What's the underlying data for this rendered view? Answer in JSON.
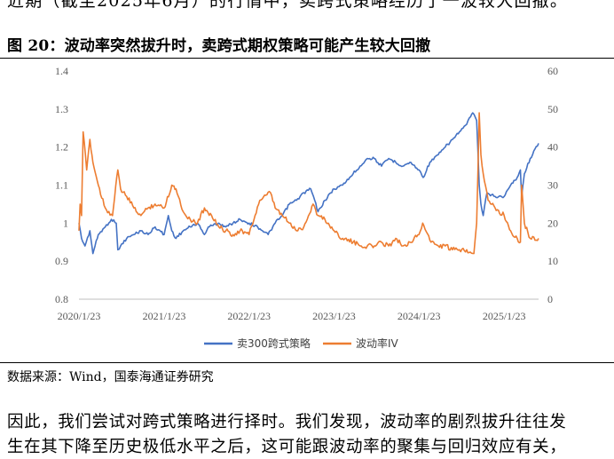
{
  "header_text": "近期（截至2025年6月）的行情中，卖跨式策略经历了一波较大回撤。",
  "figure_title": "图 20：波动率突然拔升时，卖跨式期权策略可能产生较大回撤",
  "source_note": "数据来源：Wind，国泰海通证券研究",
  "body_lines": [
    "因此，我们尝试对跨式策略进行择时。我们发现，波动率的剧烈拔升往往发",
    "生在其下降至历史极低水平之后，这可能跟波动率的聚集与回归效应有关，"
  ],
  "chart_data": {
    "type": "line",
    "title": "",
    "x_tick_labels": [
      "2020/1/23",
      "2021/1/23",
      "2022/1/23",
      "2023/1/23",
      "2024/1/23",
      "2025/1/23"
    ],
    "x_tick_dates": [
      "2020-01-23",
      "2021-01-23",
      "2022-01-23",
      "2023-01-23",
      "2024-01-23",
      "2025-01-23"
    ],
    "x_range": [
      "2020-01-23",
      "2025-06-20"
    ],
    "y_left": {
      "ticks": [
        "0.8",
        "0.9",
        "1",
        "1.1",
        "1.2",
        "1.3",
        "1.4"
      ],
      "range": [
        0.8,
        1.4
      ]
    },
    "y_right": {
      "ticks": [
        "0",
        "10",
        "20",
        "30",
        "40",
        "50",
        "60"
      ],
      "range": [
        0,
        60
      ]
    },
    "grid": false,
    "legend_position": "bottom",
    "series": [
      {
        "name": "卖300跨式策略",
        "axis": "left",
        "color": "#4472C4",
        "points": [
          [
            "2020-01-23",
            1.0
          ],
          [
            "2020-02-03",
            0.96
          ],
          [
            "2020-02-18",
            0.94
          ],
          [
            "2020-03-10",
            0.98
          ],
          [
            "2020-03-23",
            0.92
          ],
          [
            "2020-04-15",
            0.97
          ],
          [
            "2020-05-15",
            0.99
          ],
          [
            "2020-06-10",
            1.01
          ],
          [
            "2020-07-01",
            1.0
          ],
          [
            "2020-07-08",
            0.93
          ],
          [
            "2020-07-20",
            0.94
          ],
          [
            "2020-08-15",
            0.96
          ],
          [
            "2020-09-15",
            0.97
          ],
          [
            "2020-10-15",
            0.98
          ],
          [
            "2020-11-15",
            0.97
          ],
          [
            "2020-12-15",
            0.99
          ],
          [
            "2021-01-23",
            0.97
          ],
          [
            "2021-02-10",
            1.02
          ],
          [
            "2021-02-25",
            0.98
          ],
          [
            "2021-03-15",
            0.96
          ],
          [
            "2021-04-15",
            0.98
          ],
          [
            "2021-05-15",
            0.99
          ],
          [
            "2021-06-15",
            1.0
          ],
          [
            "2021-07-15",
            0.97
          ],
          [
            "2021-08-01",
            0.99
          ],
          [
            "2021-09-15",
            1.0
          ],
          [
            "2021-10-15",
            0.99
          ],
          [
            "2021-11-15",
            1.0
          ],
          [
            "2021-12-15",
            1.01
          ],
          [
            "2022-01-23",
            1.0
          ],
          [
            "2022-03-01",
            0.99
          ],
          [
            "2022-04-15",
            0.97
          ],
          [
            "2022-05-15",
            1.0
          ],
          [
            "2022-06-15",
            1.02
          ],
          [
            "2022-07-15",
            1.05
          ],
          [
            "2022-08-15",
            1.06
          ],
          [
            "2022-09-15",
            1.08
          ],
          [
            "2022-10-15",
            1.09
          ],
          [
            "2022-11-01",
            1.06
          ],
          [
            "2022-11-15",
            1.03
          ],
          [
            "2022-12-15",
            1.06
          ],
          [
            "2023-01-23",
            1.09
          ],
          [
            "2023-03-01",
            1.1
          ],
          [
            "2023-04-15",
            1.13
          ],
          [
            "2023-05-15",
            1.15
          ],
          [
            "2023-06-15",
            1.17
          ],
          [
            "2023-07-15",
            1.17
          ],
          [
            "2023-08-15",
            1.15
          ],
          [
            "2023-09-15",
            1.17
          ],
          [
            "2023-10-15",
            1.16
          ],
          [
            "2023-11-15",
            1.15
          ],
          [
            "2023-12-15",
            1.16
          ],
          [
            "2024-01-23",
            1.14
          ],
          [
            "2024-02-10",
            1.12
          ],
          [
            "2024-03-10",
            1.16
          ],
          [
            "2024-04-15",
            1.18
          ],
          [
            "2024-05-15",
            1.2
          ],
          [
            "2024-06-15",
            1.22
          ],
          [
            "2024-07-15",
            1.24
          ],
          [
            "2024-08-15",
            1.26
          ],
          [
            "2024-09-01",
            1.28
          ],
          [
            "2024-09-10",
            1.29
          ],
          [
            "2024-09-20",
            1.28
          ],
          [
            "2024-09-27",
            1.27
          ],
          [
            "2024-10-08",
            1.1
          ],
          [
            "2024-10-15",
            1.05
          ],
          [
            "2024-10-25",
            1.02
          ],
          [
            "2024-11-10",
            1.08
          ],
          [
            "2024-12-15",
            1.07
          ],
          [
            "2025-01-23",
            1.07
          ],
          [
            "2025-02-20",
            1.1
          ],
          [
            "2025-03-20",
            1.12
          ],
          [
            "2025-04-03",
            1.14
          ],
          [
            "2025-04-08",
            1.07
          ],
          [
            "2025-04-20",
            1.13
          ],
          [
            "2025-05-15",
            1.17
          ],
          [
            "2025-06-20",
            1.21
          ]
        ]
      },
      {
        "name": "波动率IV",
        "axis": "right",
        "color": "#ED7D31",
        "points": [
          [
            "2020-01-23",
            18
          ],
          [
            "2020-01-28",
            25
          ],
          [
            "2020-02-03",
            22
          ],
          [
            "2020-02-10",
            44
          ],
          [
            "2020-02-25",
            34
          ],
          [
            "2020-03-10",
            42
          ],
          [
            "2020-03-23",
            36
          ],
          [
            "2020-04-15",
            30
          ],
          [
            "2020-05-15",
            24
          ],
          [
            "2020-06-15",
            22
          ],
          [
            "2020-07-08",
            34
          ],
          [
            "2020-07-20",
            29
          ],
          [
            "2020-08-15",
            27
          ],
          [
            "2020-09-15",
            24
          ],
          [
            "2020-10-15",
            22
          ],
          [
            "2020-11-15",
            24
          ],
          [
            "2020-12-15",
            25
          ],
          [
            "2021-01-23",
            24
          ],
          [
            "2021-02-25",
            30
          ],
          [
            "2021-03-15",
            29
          ],
          [
            "2021-04-15",
            23
          ],
          [
            "2021-05-15",
            21
          ],
          [
            "2021-06-15",
            20
          ],
          [
            "2021-07-15",
            24
          ],
          [
            "2021-08-15",
            22
          ],
          [
            "2021-09-15",
            19
          ],
          [
            "2021-10-15",
            18
          ],
          [
            "2021-11-15",
            17
          ],
          [
            "2021-12-15",
            18
          ],
          [
            "2022-01-23",
            17
          ],
          [
            "2022-03-10",
            26
          ],
          [
            "2022-04-25",
            28
          ],
          [
            "2022-05-15",
            24
          ],
          [
            "2022-06-15",
            22
          ],
          [
            "2022-07-15",
            20
          ],
          [
            "2022-08-15",
            18
          ],
          [
            "2022-09-15",
            19
          ],
          [
            "2022-10-25",
            25
          ],
          [
            "2022-11-15",
            22
          ],
          [
            "2022-12-15",
            21
          ],
          [
            "2023-01-23",
            18
          ],
          [
            "2023-03-01",
            16
          ],
          [
            "2023-04-15",
            15
          ],
          [
            "2023-05-15",
            14
          ],
          [
            "2023-06-15",
            14
          ],
          [
            "2023-07-15",
            14
          ],
          [
            "2023-08-15",
            15
          ],
          [
            "2023-09-15",
            14
          ],
          [
            "2023-10-15",
            16
          ],
          [
            "2023-11-15",
            14
          ],
          [
            "2023-12-15",
            15
          ],
          [
            "2024-01-23",
            17
          ],
          [
            "2024-02-08",
            20
          ],
          [
            "2024-03-15",
            15
          ],
          [
            "2024-04-15",
            14
          ],
          [
            "2024-05-15",
            14
          ],
          [
            "2024-06-15",
            13
          ],
          [
            "2024-07-15",
            13
          ],
          [
            "2024-08-15",
            13
          ],
          [
            "2024-09-15",
            12
          ],
          [
            "2024-09-27",
            20
          ],
          [
            "2024-10-08",
            49
          ],
          [
            "2024-10-15",
            38
          ],
          [
            "2024-10-25",
            33
          ],
          [
            "2024-11-15",
            26
          ],
          [
            "2024-12-15",
            24
          ],
          [
            "2025-01-23",
            22
          ],
          [
            "2025-02-20",
            18
          ],
          [
            "2025-03-20",
            16
          ],
          [
            "2025-04-03",
            15
          ],
          [
            "2025-04-08",
            30
          ],
          [
            "2025-04-20",
            20
          ],
          [
            "2025-05-15",
            16
          ],
          [
            "2025-06-20",
            16
          ]
        ]
      }
    ]
  }
}
